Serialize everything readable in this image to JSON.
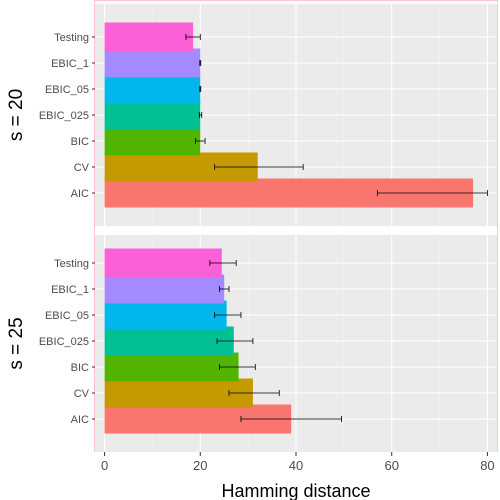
{
  "chart_data": {
    "type": "bar",
    "orientation": "horizontal",
    "xlabel": "Hamming distance",
    "ylabel": "",
    "xlim": [
      -2,
      82
    ],
    "xticks": [
      0,
      20,
      40,
      60,
      80
    ],
    "grid": true,
    "legend": "none",
    "categories": [
      "AIC",
      "CV",
      "BIC",
      "EBIC_025",
      "EBIC_05",
      "EBIC_1",
      "Testing"
    ],
    "colors": [
      "#F8766D",
      "#C49A00",
      "#53B400",
      "#00C094",
      "#00B6EB",
      "#A58AFF",
      "#FB61D7"
    ],
    "panels": [
      {
        "label": "s = 20",
        "values": [
          77,
          32,
          20,
          20,
          20,
          20,
          18.5
        ],
        "errors": [
          [
            57,
            80
          ],
          [
            23,
            41.5
          ],
          [
            19,
            21
          ],
          [
            19.8,
            20.3
          ],
          [
            19.9,
            20.1
          ],
          [
            19.9,
            20.1
          ],
          [
            17,
            20
          ]
        ]
      },
      {
        "label": "s = 25",
        "values": [
          39,
          31,
          28,
          27,
          25.5,
          25,
          24.5
        ],
        "errors": [
          [
            28.5,
            49.5
          ],
          [
            26,
            36.5
          ],
          [
            24,
            31.5
          ],
          [
            23.5,
            31
          ],
          [
            23,
            28.5
          ],
          [
            24,
            26
          ],
          [
            22,
            27.5
          ]
        ]
      }
    ]
  }
}
